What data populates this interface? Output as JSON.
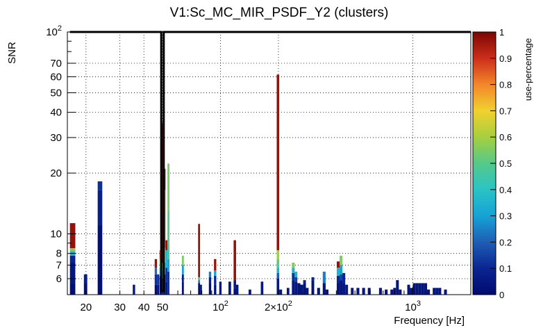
{
  "chart_data": {
    "type": "heatmap",
    "title": "V1:Sc_MC_MIR_PSDF_Y2 (clusters)",
    "xlabel": "Frequency [Hz]",
    "ylabel": "SNR",
    "colorbar_label": "use-percentage",
    "xscale": "log",
    "yscale": "log",
    "xlim": [
      16,
      2000
    ],
    "ylim": [
      5,
      100
    ],
    "zlim": [
      0,
      1
    ],
    "grid": true,
    "x_ticks": [
      {
        "v": 20,
        "label": "20"
      },
      {
        "v": 30,
        "label": "30"
      },
      {
        "v": 40,
        "label": "40"
      },
      {
        "v": 50,
        "label": "50"
      },
      {
        "v": 100,
        "label": "10",
        "sup": "2"
      },
      {
        "v": 200,
        "label": "2×10",
        "sup": "2"
      },
      {
        "v": 1000,
        "label": "10",
        "sup": "3"
      }
    ],
    "y_ticks": [
      {
        "v": 6,
        "label": "6"
      },
      {
        "v": 7,
        "label": "7"
      },
      {
        "v": 8,
        "label": "8"
      },
      {
        "v": 10,
        "label": "10"
      },
      {
        "v": 20,
        "label": "20"
      },
      {
        "v": 30,
        "label": "30"
      },
      {
        "v": 40,
        "label": "40"
      },
      {
        "v": 50,
        "label": "50"
      },
      {
        "v": 60,
        "label": "60"
      },
      {
        "v": 70,
        "label": "70"
      },
      {
        "v": 100,
        "label": "10",
        "sup": "2"
      }
    ],
    "colorbar_ticks": [
      {
        "v": 0,
        "label": "0"
      },
      {
        "v": 0.1,
        "label": "0.1"
      },
      {
        "v": 0.2,
        "label": "0.2"
      },
      {
        "v": 0.3,
        "label": "0.3"
      },
      {
        "v": 0.4,
        "label": "0.4"
      },
      {
        "v": 0.5,
        "label": "0.5"
      },
      {
        "v": 0.6,
        "label": "0.6"
      },
      {
        "v": 0.7,
        "label": "0.7"
      },
      {
        "v": 0.8,
        "label": "0.8"
      },
      {
        "v": 0.9,
        "label": "0.9"
      },
      {
        "v": 1,
        "label": "1"
      }
    ],
    "columns": [
      {
        "f0": 16.5,
        "f1": 17.6,
        "segments": [
          [
            5,
            5.7,
            0.02
          ],
          [
            5.7,
            7.2,
            0.05
          ],
          [
            7.2,
            7.8,
            0.1
          ],
          [
            7.8,
            8.2,
            0.35
          ],
          [
            8.2,
            8.5,
            0.55
          ],
          [
            8.5,
            11.3,
            0.97
          ]
        ]
      },
      {
        "f0": 19.5,
        "f1": 20.3,
        "segments": [
          [
            5,
            5.7,
            0.03
          ],
          [
            5.7,
            6.3,
            0.08
          ]
        ]
      },
      {
        "f0": 23.0,
        "f1": 24.3,
        "segments": [
          [
            5,
            11,
            0.02
          ],
          [
            11,
            16.5,
            0.08
          ],
          [
            16.5,
            18.2,
            0.12
          ]
        ]
      },
      {
        "f0": 35.0,
        "f1": 36.0,
        "segments": [
          [
            5,
            5.6,
            0.05
          ]
        ]
      },
      {
        "f0": 45.5,
        "f1": 46.8,
        "segments": [
          [
            5,
            5.6,
            0.02
          ],
          [
            5.6,
            6.3,
            0.12
          ],
          [
            6.3,
            6.8,
            0.22
          ],
          [
            6.8,
            7.5,
            0.97
          ]
        ]
      },
      {
        "f0": 46.8,
        "f1": 48.0,
        "segments": [
          [
            5,
            5.6,
            0.03
          ],
          [
            5.6,
            6.3,
            0.12
          ]
        ]
      },
      {
        "f0": 48.2,
        "f1": 49.6,
        "segments": [
          [
            5,
            6.2,
            0.05
          ],
          [
            6.2,
            6.8,
            0.3
          ],
          [
            6.8,
            7.5,
            0.55
          ],
          [
            7.5,
            8.3,
            0.85
          ]
        ]
      },
      {
        "f0": 49.6,
        "f1": 50.6,
        "segments": [
          [
            5,
            6,
            0.15
          ],
          [
            6,
            6.6,
            0.35
          ],
          [
            6.6,
            7.2,
            0.55
          ],
          [
            7.2,
            35.5,
            0.97
          ]
        ]
      },
      {
        "f0": 50.6,
        "f1": 51.8,
        "segments": [
          [
            5,
            6.3,
            0.05
          ],
          [
            6.3,
            7.2,
            0.3
          ],
          [
            7.2,
            8.5,
            0.6
          ],
          [
            8.5,
            16.5,
            0.85
          ],
          [
            16.5,
            21,
            0.97
          ]
        ]
      },
      {
        "f0": 51.8,
        "f1": 53.0,
        "segments": [
          [
            5,
            5.8,
            0.05
          ],
          [
            5.8,
            6.8,
            0.12
          ],
          [
            6.8,
            8.3,
            0.35
          ],
          [
            8.3,
            9.3,
            0.97
          ]
        ]
      },
      {
        "f0": 53.0,
        "f1": 54.3,
        "segments": [
          [
            5,
            6.5,
            0.12
          ],
          [
            6.5,
            7.5,
            0.3
          ],
          [
            7.5,
            9,
            0.45
          ],
          [
            9,
            13,
            0.5
          ],
          [
            13,
            22.3,
            0.55
          ]
        ]
      },
      {
        "f0": 63.0,
        "f1": 64.5,
        "segments": [
          [
            5,
            5.8,
            0.03
          ],
          [
            5.8,
            6.3,
            0.08
          ],
          [
            6.3,
            7,
            0.3
          ],
          [
            7,
            7.8,
            0.55
          ]
        ]
      },
      {
        "f0": 76.5,
        "f1": 78.3,
        "segments": [
          [
            5,
            5.7,
            0.02
          ],
          [
            5.7,
            5.9,
            0.25
          ],
          [
            5.9,
            6.1,
            0.5
          ],
          [
            6.1,
            11.2,
            0.97
          ]
        ]
      },
      {
        "f0": 78.3,
        "f1": 80.1,
        "segments": [
          [
            5,
            5.6,
            0.05
          ]
        ]
      },
      {
        "f0": 87.0,
        "f1": 89.5,
        "segments": [
          [
            5,
            5.7,
            0.03
          ],
          [
            5.7,
            6.1,
            0.08
          ],
          [
            6.1,
            6.5,
            0.25
          ]
        ]
      },
      {
        "f0": 92.5,
        "f1": 95.1,
        "segments": [
          [
            5,
            5.6,
            0.03
          ],
          [
            5.6,
            6.2,
            0.1
          ],
          [
            6.2,
            6.6,
            0.3
          ],
          [
            6.6,
            7.5,
            0.97
          ]
        ]
      },
      {
        "f0": 98.5,
        "f1": 101.3,
        "segments": [
          [
            5,
            5.8,
            0.05
          ]
        ]
      },
      {
        "f0": 110,
        "f1": 113.5,
        "segments": [
          [
            5,
            5.8,
            0.05
          ]
        ]
      },
      {
        "f0": 117,
        "f1": 120.5,
        "segments": [
          [
            5,
            5.4,
            0.02
          ],
          [
            5.4,
            5.9,
            0.05
          ],
          [
            5.9,
            9.3,
            0.97
          ]
        ]
      },
      {
        "f0": 120.5,
        "f1": 124,
        "segments": [
          [
            5,
            5.6,
            0.04
          ]
        ]
      },
      {
        "f0": 140,
        "f1": 144.5,
        "segments": [
          [
            5,
            5.3,
            0.05
          ]
        ]
      },
      {
        "f0": 162,
        "f1": 167,
        "segments": [
          [
            5,
            5.8,
            0.05
          ]
        ]
      },
      {
        "f0": 196,
        "f1": 202,
        "segments": [
          [
            5,
            6,
            0.05
          ],
          [
            6,
            6.4,
            0.2
          ],
          [
            6.4,
            6.8,
            0.35
          ],
          [
            6.8,
            7.5,
            0.5
          ],
          [
            7.5,
            8.3,
            0.6
          ],
          [
            8.3,
            61.5,
            0.97
          ]
        ]
      },
      {
        "f0": 202,
        "f1": 209,
        "segments": [
          [
            5,
            5.3,
            0.05
          ]
        ]
      },
      {
        "f0": 221,
        "f1": 228,
        "segments": [
          [
            5,
            5.4,
            0.05
          ]
        ]
      },
      {
        "f0": 235,
        "f1": 243,
        "segments": [
          [
            5,
            5.9,
            0.05
          ],
          [
            5.9,
            6.4,
            0.12
          ],
          [
            6.4,
            6.8,
            0.35
          ],
          [
            6.8,
            7.2,
            0.55
          ]
        ]
      },
      {
        "f0": 243,
        "f1": 251,
        "segments": [
          [
            5,
            5.8,
            0.05
          ],
          [
            5.8,
            6.1,
            0.15
          ],
          [
            6.1,
            6.5,
            0.35
          ]
        ]
      },
      {
        "f0": 251,
        "f1": 260,
        "segments": [
          [
            5,
            5.7,
            0.04
          ]
        ]
      },
      {
        "f0": 260,
        "f1": 269,
        "segments": [
          [
            5,
            5.6,
            0.04
          ]
        ]
      },
      {
        "f0": 269,
        "f1": 278,
        "segments": [
          [
            5,
            5.7,
            0.03
          ],
          [
            5.7,
            5.9,
            0.1
          ]
        ]
      },
      {
        "f0": 278,
        "f1": 287,
        "segments": [
          [
            5,
            5.4,
            0.04
          ]
        ]
      },
      {
        "f0": 297,
        "f1": 307,
        "segments": [
          [
            5,
            5.9,
            0.04
          ],
          [
            5.9,
            6.1,
            0.1
          ]
        ]
      },
      {
        "f0": 318,
        "f1": 329,
        "segments": [
          [
            5,
            5.4,
            0.04
          ]
        ]
      },
      {
        "f0": 340,
        "f1": 352,
        "segments": [
          [
            5,
            5.7,
            0.04
          ],
          [
            5.7,
            6.5,
            0.25
          ]
        ]
      },
      {
        "f0": 352,
        "f1": 364,
        "segments": [
          [
            5,
            5.3,
            0.04
          ]
        ]
      },
      {
        "f0": 402,
        "f1": 416,
        "segments": [
          [
            5,
            5.7,
            0.04
          ],
          [
            5.7,
            6.2,
            0.1
          ],
          [
            6.2,
            6.8,
            0.35
          ],
          [
            6.8,
            7.3,
            0.97
          ]
        ]
      },
      {
        "f0": 416,
        "f1": 430,
        "segments": [
          [
            5,
            5.9,
            0.04
          ],
          [
            5.9,
            6.3,
            0.15
          ],
          [
            6.3,
            7.0,
            0.3
          ],
          [
            7.0,
            7.8,
            0.55
          ]
        ]
      },
      {
        "f0": 430,
        "f1": 445,
        "segments": [
          [
            5,
            5.7,
            0.05
          ],
          [
            5.7,
            6.4,
            0.1
          ]
        ]
      },
      {
        "f0": 445,
        "f1": 460,
        "segments": [
          [
            5,
            5.6,
            0.05
          ]
        ]
      },
      {
        "f0": 476,
        "f1": 492,
        "segments": [
          [
            5,
            5.4,
            0.04
          ]
        ]
      },
      {
        "f0": 509,
        "f1": 527,
        "segments": [
          [
            5,
            5.4,
            0.04
          ]
        ]
      },
      {
        "f0": 545,
        "f1": 564,
        "segments": [
          [
            5,
            5.4,
            0.04
          ]
        ]
      },
      {
        "f0": 583,
        "f1": 603,
        "segments": [
          [
            5,
            5.4,
            0.04
          ]
        ]
      },
      {
        "f0": 667,
        "f1": 690,
        "segments": [
          [
            5,
            5.4,
            0.04
          ]
        ]
      },
      {
        "f0": 714,
        "f1": 739,
        "segments": [
          [
            5,
            5.3,
            0.04
          ]
        ]
      },
      {
        "f0": 764,
        "f1": 790,
        "segments": [
          [
            5,
            5.3,
            0.04
          ]
        ]
      },
      {
        "f0": 790,
        "f1": 817,
        "segments": [
          [
            5,
            5.4,
            0.04
          ]
        ]
      },
      {
        "f0": 817,
        "f1": 845,
        "segments": [
          [
            5,
            5.9,
            0.04
          ]
        ]
      },
      {
        "f0": 845,
        "f1": 874,
        "segments": [
          [
            5,
            5.3,
            0.04
          ]
        ]
      },
      {
        "f0": 935,
        "f1": 967,
        "segments": [
          [
            5,
            5.6,
            0.04
          ]
        ]
      },
      {
        "f0": 967,
        "f1": 1000,
        "segments": [
          [
            5,
            5.4,
            0.04
          ]
        ]
      },
      {
        "f0": 1000,
        "f1": 1035,
        "segments": [
          [
            5,
            5.7,
            0.04
          ]
        ]
      },
      {
        "f0": 1035,
        "f1": 1070,
        "segments": [
          [
            5,
            5.7,
            0.04
          ]
        ]
      },
      {
        "f0": 1070,
        "f1": 1107,
        "segments": [
          [
            5,
            5.7,
            0.04
          ]
        ]
      },
      {
        "f0": 1107,
        "f1": 1145,
        "segments": [
          [
            5,
            5.7,
            0.04
          ]
        ]
      },
      {
        "f0": 1145,
        "f1": 1185,
        "segments": [
          [
            5,
            5.7,
            0.04
          ]
        ]
      },
      {
        "f0": 1185,
        "f1": 1226,
        "segments": [
          [
            5,
            5.3,
            0.04
          ]
        ]
      },
      {
        "f0": 1268,
        "f1": 1312,
        "segments": [
          [
            5,
            5.4,
            0.04
          ]
        ]
      },
      {
        "f0": 1312,
        "f1": 1357,
        "segments": [
          [
            5,
            5.4,
            0.04
          ]
        ]
      },
      {
        "f0": 1357,
        "f1": 1404,
        "segments": [
          [
            5,
            5.4,
            0.04
          ]
        ]
      },
      {
        "f0": 1452,
        "f1": 1502,
        "segments": [
          [
            5,
            5.3,
            0.04
          ]
        ]
      }
    ],
    "outline": [
      [
        16.5,
        100
      ],
      [
        49.2,
        100
      ],
      [
        49.2,
        5.2
      ],
      [
        50.7,
        5.2
      ],
      [
        50.7,
        100
      ],
      [
        2000,
        100
      ]
    ]
  }
}
